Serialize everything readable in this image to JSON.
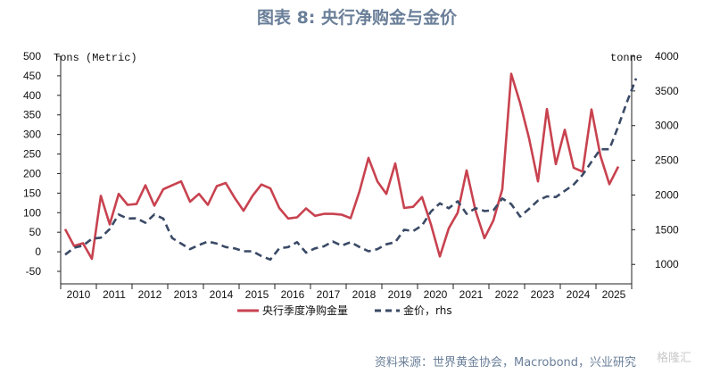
{
  "title": "图表 8:  央行净购金与金价",
  "source": "资料来源：世界黄金协会，Macrobond，兴业研究",
  "watermark": "格隆汇",
  "colors": {
    "demand": "#c8424f",
    "price": "#3a4a66",
    "title": "#6a7f99",
    "axis": "#222222"
  },
  "chart_data": {
    "type": "line",
    "left_axis": {
      "unit_label": "Tons (Metric)",
      "ylim": [
        -50,
        500
      ],
      "ticks": [
        500,
        450,
        400,
        350,
        300,
        250,
        200,
        150,
        100,
        50,
        0,
        -50
      ]
    },
    "right_axis": {
      "unit_label": "tonne",
      "ylim": [
        900,
        4000
      ],
      "ticks": [
        4000,
        3500,
        3000,
        2500,
        2000,
        1500,
        1000
      ]
    },
    "x_ticks": [
      "2010",
      "2011",
      "2012",
      "2013",
      "2014",
      "2015",
      "2016",
      "2017",
      "2018",
      "2019",
      "2020",
      "2021",
      "2022",
      "2023",
      "2024",
      "2025"
    ],
    "x_start": 2010,
    "x_end": 2026,
    "series": [
      {
        "name": "央行季度净购金量",
        "axis": "left",
        "style": "solid",
        "color": "#c8424f",
        "quarters_from": "2010Q1",
        "values": [
          58,
          15,
          22,
          -18,
          143,
          70,
          148,
          120,
          122,
          170,
          118,
          160,
          170,
          180,
          128,
          148,
          120,
          168,
          176,
          138,
          105,
          143,
          172,
          162,
          112,
          85,
          88,
          111,
          92,
          97,
          97,
          95,
          86,
          155,
          240,
          180,
          148,
          226,
          112,
          115,
          140,
          70,
          -12,
          60,
          100,
          208,
          105,
          35,
          80,
          160,
          455,
          380,
          290,
          180,
          365,
          224,
          312,
          215,
          205,
          364,
          245,
          173,
          218
        ]
      },
      {
        "name": "金价，rhs",
        "axis": "right",
        "style": "dashed",
        "color": "#3a4a66",
        "quarters_from": "2010Q1",
        "values": [
          1140,
          1240,
          1270,
          1370,
          1385,
          1510,
          1720,
          1660,
          1665,
          1600,
          1720,
          1660,
          1380,
          1300,
          1220,
          1280,
          1330,
          1300,
          1250,
          1230,
          1190,
          1190,
          1120,
          1070,
          1230,
          1250,
          1320,
          1170,
          1230,
          1260,
          1330,
          1270,
          1320,
          1250,
          1190,
          1220,
          1290,
          1320,
          1500,
          1480,
          1560,
          1760,
          1880,
          1810,
          1910,
          1730,
          1810,
          1770,
          1780,
          1950,
          1870,
          1690,
          1800,
          1920,
          1980,
          1970,
          2060,
          2150,
          2290,
          2480,
          2660,
          2660,
          2990,
          3350,
          3680
        ]
      }
    ]
  }
}
